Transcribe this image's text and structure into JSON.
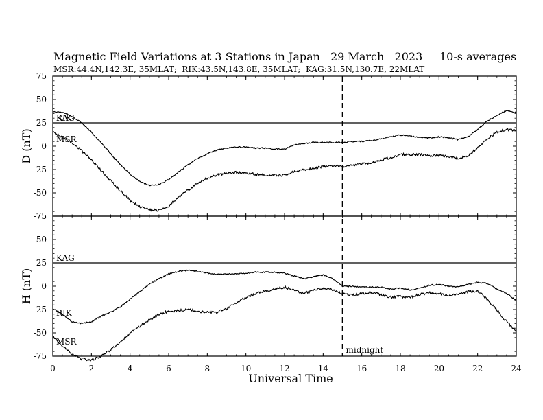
{
  "chart_data": {
    "type": "line",
    "title": "Magnetic Field Variations at 3 Stations in Japan",
    "date": "29 March   2023",
    "averaging": "10-s averages",
    "subtitle": "MSR:44.4N,142.3E, 35MLAT;  RIK:43.5N,143.8E, 35MLAT;  KAG:31.5N,130.7E, 22MLAT",
    "xlabel": "Universal Time",
    "xlim": [
      0,
      24
    ],
    "xticks": [
      "0",
      "2",
      "4",
      "6",
      "8",
      "10",
      "12",
      "14",
      "16",
      "18",
      "20",
      "22",
      "24"
    ],
    "marker": {
      "x": 15,
      "label": "midnight"
    },
    "panels": [
      {
        "ylabel": "D (nT)",
        "ylim": [
          -75,
          75
        ],
        "yticks": [
          "75",
          "50",
          "25",
          "0",
          "-25",
          "-50",
          "-75"
        ],
        "series": [
          {
            "name": "KAG",
            "x": [
              0,
              24
            ],
            "y": [
              25,
              25
            ]
          },
          {
            "name": "RIK",
            "x": [
              0,
              0.5,
              1,
              1.5,
              2,
              2.5,
              3,
              3.5,
              4,
              4.5,
              5,
              5.5,
              6,
              6.5,
              7,
              7.5,
              8,
              8.5,
              9,
              9.5,
              10,
              10.5,
              11,
              11.5,
              12,
              12.5,
              13,
              13.5,
              14,
              14.5,
              15,
              15.5,
              16,
              16.5,
              17,
              17.5,
              18,
              18.5,
              19,
              19.5,
              20,
              20.5,
              21,
              21.5,
              22,
              22.5,
              23,
              23.5,
              24
            ],
            "y": [
              37,
              36,
              32,
              25,
              15,
              4,
              -8,
              -20,
              -30,
              -38,
              -42,
              -41,
              -36,
              -28,
              -20,
              -13,
              -8,
              -4,
              -2,
              -1,
              -1,
              -2,
              -2,
              -3,
              -3,
              1,
              3,
              4,
              4,
              4,
              4,
              5,
              5,
              6,
              8,
              10,
              12,
              11,
              9,
              9,
              10,
              9,
              7,
              10,
              18,
              27,
              33,
              38,
              36
            ]
          },
          {
            "name": "MSR",
            "x": [
              0,
              0.5,
              1,
              1.5,
              2,
              2.5,
              3,
              3.5,
              4,
              4.5,
              5,
              5.5,
              6,
              6.5,
              7,
              7.5,
              8,
              8.5,
              9,
              9.5,
              10,
              10.5,
              11,
              11.5,
              12,
              12.5,
              13,
              13.5,
              14,
              14.5,
              15,
              15.5,
              16,
              16.5,
              17,
              17.5,
              18,
              18.5,
              19,
              19.5,
              20,
              20.5,
              21,
              21.5,
              22,
              22.5,
              23,
              23.5,
              24
            ],
            "y": [
              15,
              10,
              3,
              -5,
              -15,
              -26,
              -37,
              -48,
              -58,
              -65,
              -68,
              -69,
              -64,
              -55,
              -47,
              -40,
              -34,
              -31,
              -29,
              -28,
              -29,
              -30,
              -31,
              -31,
              -31,
              -27,
              -25,
              -24,
              -22,
              -21,
              -22,
              -20,
              -19,
              -18,
              -15,
              -12,
              -9,
              -9,
              -9,
              -10,
              -10,
              -11,
              -13,
              -10,
              -2,
              8,
              15,
              18,
              16
            ]
          }
        ]
      },
      {
        "ylabel": "H (nT)",
        "ylim": [
          -75,
          75
        ],
        "yticks": [
          "75",
          "50",
          "25",
          "0",
          "-25",
          "-50",
          "-75"
        ],
        "series": [
          {
            "name": "KAG",
            "x": [
              0,
              24
            ],
            "y": [
              25,
              25
            ]
          },
          {
            "name": "RIK",
            "x": [
              0,
              0.5,
              1,
              1.5,
              2,
              2.5,
              3,
              3.5,
              4,
              4.5,
              5,
              5.5,
              6,
              6.5,
              7,
              7.5,
              8,
              8.5,
              9,
              9.5,
              10,
              10.5,
              11,
              11.5,
              12,
              12.5,
              13,
              13.5,
              14,
              14.5,
              15,
              15.5,
              16,
              16.5,
              17,
              17.5,
              18,
              18.5,
              19,
              19.5,
              20,
              20.5,
              21,
              21.5,
              22,
              22.5,
              23,
              23.5,
              24
            ],
            "y": [
              -24,
              -30,
              -38,
              -40,
              -38,
              -32,
              -28,
              -22,
              -14,
              -6,
              2,
              8,
              13,
              16,
              17,
              16,
              14,
              13,
              13,
              13,
              14,
              15,
              15,
              15,
              14,
              11,
              8,
              10,
              12,
              8,
              0,
              0,
              -1,
              -1,
              -1,
              -3,
              -2,
              -4,
              -2,
              1,
              2,
              0,
              -1,
              2,
              4,
              3,
              -3,
              -8,
              -15
            ]
          },
          {
            "name": "MSR",
            "x": [
              0,
              0.5,
              1,
              1.5,
              2,
              2.5,
              3,
              3.5,
              4,
              4.5,
              5,
              5.5,
              6,
              6.5,
              7,
              7.5,
              8,
              8.5,
              9,
              9.5,
              10,
              10.5,
              11,
              11.5,
              12,
              12.5,
              13,
              13.5,
              14,
              14.5,
              15,
              15.5,
              16,
              16.5,
              17,
              17.5,
              18,
              18.5,
              19,
              19.5,
              20,
              20.5,
              21,
              21.5,
              22,
              22.5,
              23,
              23.5,
              24
            ],
            "y": [
              -54,
              -64,
              -73,
              -78,
              -79,
              -75,
              -68,
              -60,
              -50,
              -43,
              -36,
              -30,
              -27,
              -26,
              -25,
              -27,
              -28,
              -28,
              -24,
              -18,
              -12,
              -8,
              -5,
              -3,
              -1,
              -4,
              -8,
              -4,
              -2,
              -4,
              -8,
              -10,
              -8,
              -7,
              -9,
              -12,
              -11,
              -12,
              -9,
              -7,
              -8,
              -10,
              -8,
              -6,
              -5,
              -14,
              -26,
              -38,
              -48
            ]
          }
        ]
      }
    ]
  }
}
